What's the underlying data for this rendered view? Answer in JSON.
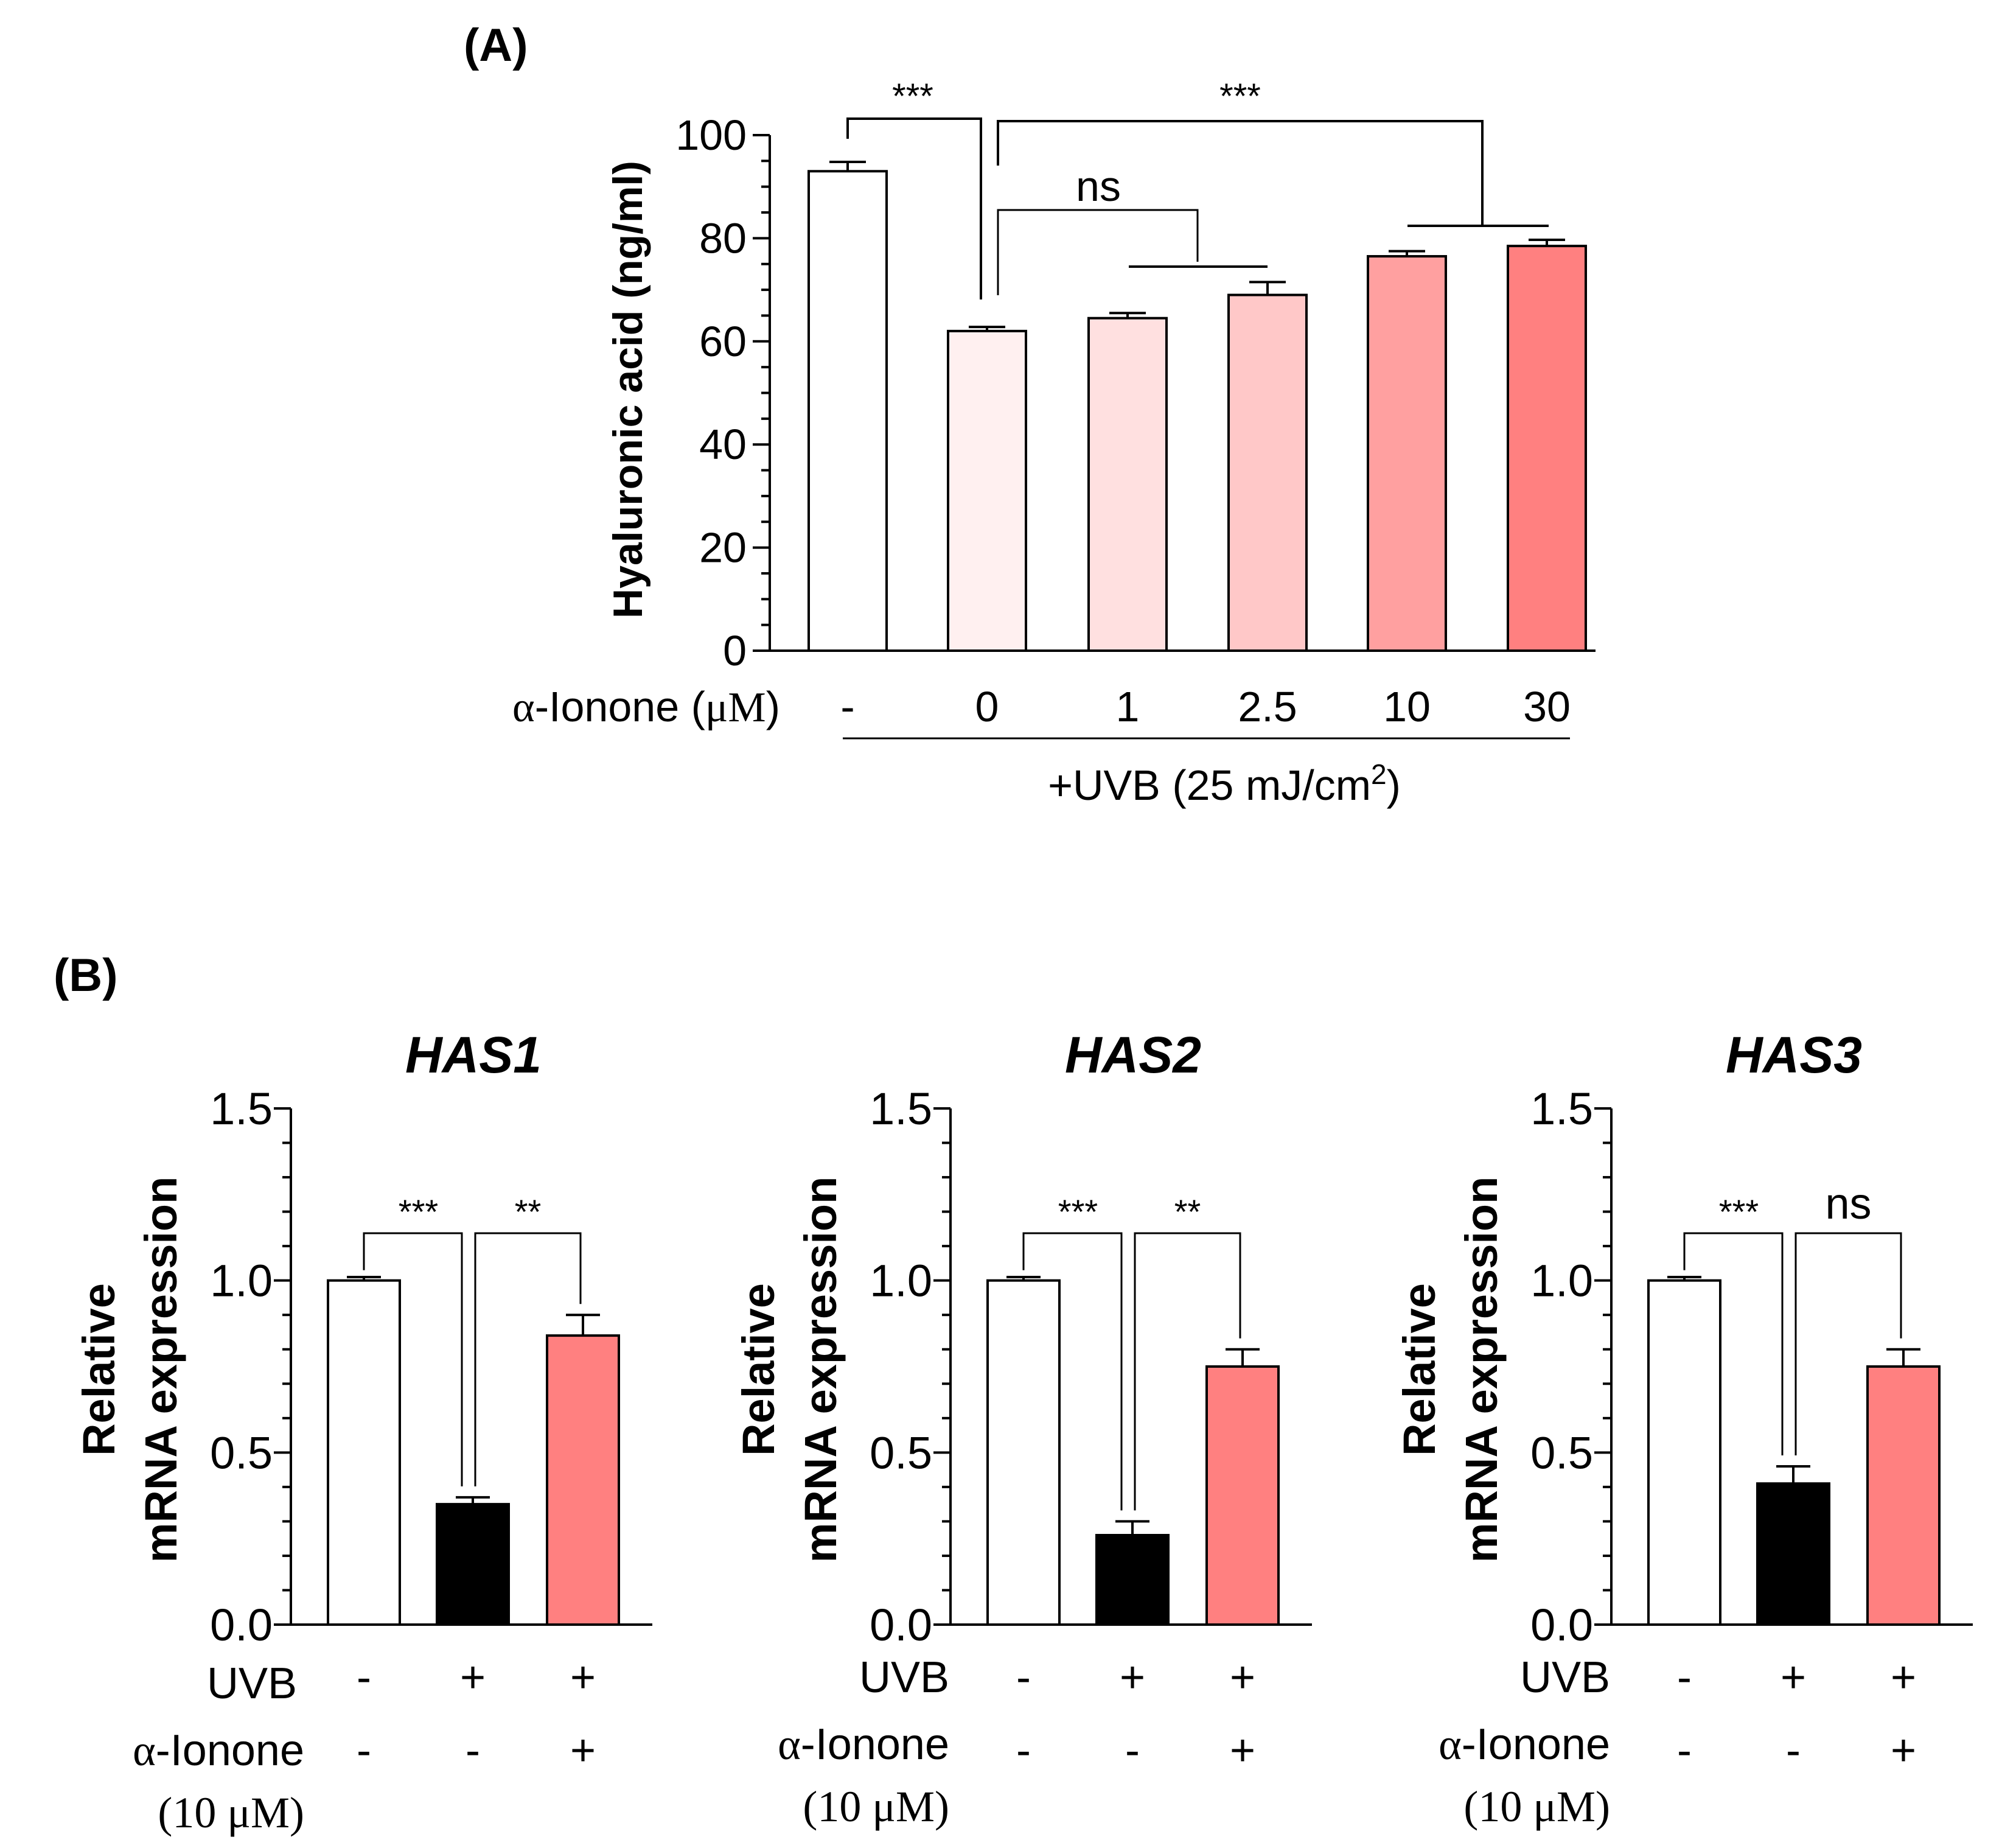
{
  "panel_a": {
    "label": "(A)",
    "ylabel": "Hyaluronic acid (ng/ml)",
    "x_row_label_greek": "α",
    "x_row_label_text": "-Ionone (",
    "x_row_label_unit": "μM",
    "x_row_label_close": ")",
    "uvb_prefix": "+UVB (25 mJ/cm",
    "uvb_sup": "2",
    "uvb_suffix": ")",
    "sig_labels": {
      "left": "***",
      "right": "***",
      "middle": "ns"
    }
  },
  "panel_b": {
    "label": "(B)",
    "ylabel_line1": "Relative",
    "ylabel_line2": "mRNA expression",
    "row_uvb_label": "UVB",
    "row_ionone_label_greek": "α",
    "row_ionone_label_text": "-Ionone",
    "row_ionone_sub": "(10 μM)",
    "uvb_signs": [
      "-",
      "+",
      "+"
    ],
    "ionone_signs": [
      "-",
      "-",
      "+"
    ]
  },
  "colors": {
    "axis": "#000000",
    "bar_white": "#ffffff",
    "bar_black": "#000000",
    "bar_pink_light": "#fff0f0",
    "bar_pink_1": "#ffe0e0",
    "bar_pink_2": "#ffc8c8",
    "bar_pink_3": "#ffa0a0",
    "bar_pink_4": "#ff8080"
  },
  "chart_data": [
    {
      "type": "bar",
      "title": "",
      "xlabel": "α-Ionone (μM)",
      "ylabel": "Hyaluronic acid (ng/ml)",
      "categories": [
        "-",
        "0",
        "1",
        "2.5",
        "10",
        "30"
      ],
      "values": [
        93,
        62,
        64.5,
        69,
        76.5,
        78.5
      ],
      "errors": [
        1.8,
        0.8,
        1.0,
        2.5,
        1.0,
        1.2
      ],
      "bar_colors": [
        "#ffffff",
        "#fff0f0",
        "#ffe0e0",
        "#ffc8c8",
        "#ffa0a0",
        "#ff8080"
      ],
      "ylim": [
        0,
        100
      ],
      "yticks": [
        "0",
        "20",
        "40",
        "60",
        "80",
        "100"
      ]
    },
    {
      "type": "bar",
      "title": "HAS1",
      "ylabel": "Relative mRNA expression",
      "categories": [
        "-/-",
        "+/-",
        "+/+"
      ],
      "values": [
        1.0,
        0.35,
        0.84
      ],
      "errors": [
        0.01,
        0.02,
        0.06
      ],
      "bar_colors": [
        "#ffffff",
        "#000000",
        "#ff8080"
      ],
      "ylim": [
        0,
        1.5
      ],
      "yticks": [
        "0.0",
        "0.5",
        "1.0",
        "1.5"
      ],
      "significance": [
        "***",
        "**"
      ]
    },
    {
      "type": "bar",
      "title": "HAS2",
      "ylabel": "Relative mRNA expression",
      "categories": [
        "-/-",
        "+/-",
        "+/+"
      ],
      "values": [
        1.0,
        0.26,
        0.75
      ],
      "errors": [
        0.01,
        0.04,
        0.05
      ],
      "bar_colors": [
        "#ffffff",
        "#000000",
        "#ff8080"
      ],
      "ylim": [
        0,
        1.5
      ],
      "yticks": [
        "0.0",
        "0.5",
        "1.0",
        "1.5"
      ],
      "significance": [
        "***",
        "**"
      ]
    },
    {
      "type": "bar",
      "title": "HAS3",
      "ylabel": "Relative mRNA expression",
      "categories": [
        "-/-",
        "+/-",
        "+/+"
      ],
      "values": [
        1.0,
        0.41,
        0.75
      ],
      "errors": [
        0.01,
        0.05,
        0.05
      ],
      "bar_colors": [
        "#ffffff",
        "#000000",
        "#ff8080"
      ],
      "ylim": [
        0,
        1.5
      ],
      "yticks": [
        "0.0",
        "0.5",
        "1.0",
        "1.5"
      ],
      "significance": [
        "***",
        "ns"
      ]
    }
  ]
}
